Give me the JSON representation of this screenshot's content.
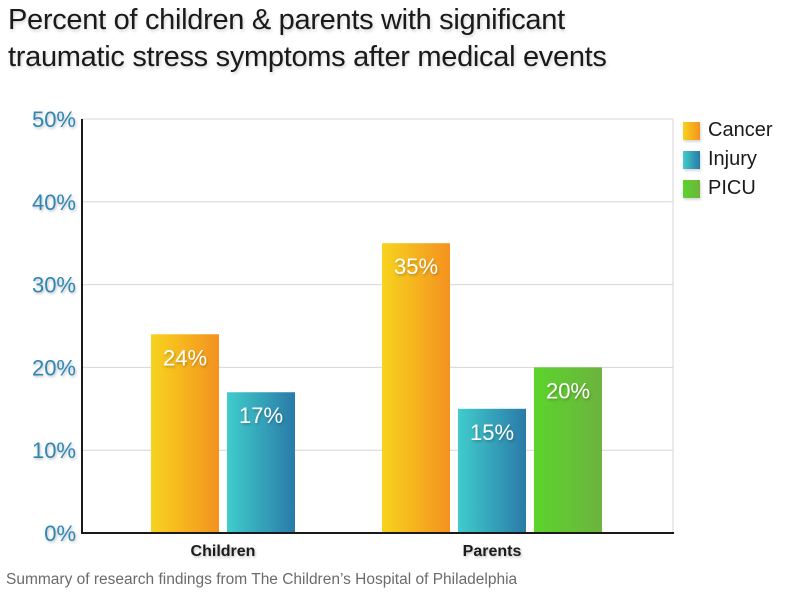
{
  "chart_data": {
    "type": "bar",
    "title": "Percent of children & parents with significant traumatic stress symptoms after medical events",
    "title_lines": [
      "Percent of children & parents with significant",
      "traumatic stress symptoms after medical events"
    ],
    "caption": "Summary of research findings from The Children’s Hospital of Philadelphia",
    "xlabel": "",
    "ylabel": "",
    "ylim": [
      0,
      50
    ],
    "yticks": [
      0,
      10,
      20,
      30,
      40,
      50
    ],
    "ytick_labels": [
      "0%",
      "10%",
      "20%",
      "30%",
      "40%",
      "50%"
    ],
    "grid": true,
    "legend_position": "right-top",
    "categories": [
      "Children",
      "Parents"
    ],
    "series": [
      {
        "name": "Cancer",
        "values": [
          24,
          35
        ],
        "labels": [
          "24%",
          "35%"
        ],
        "color_start": "#f7d31e",
        "color_end": "#f4921f"
      },
      {
        "name": "Injury",
        "values": [
          17,
          15
        ],
        "labels": [
          "17%",
          "15%"
        ],
        "color_start": "#40cccc",
        "color_end": "#2a7aa8"
      },
      {
        "name": "PICU",
        "values": [
          null,
          20
        ],
        "labels": [
          null,
          "20%"
        ],
        "color_start": "#5bd42c",
        "color_end": "#6db33f"
      }
    ],
    "axis_label_color": "#2e86b5"
  }
}
